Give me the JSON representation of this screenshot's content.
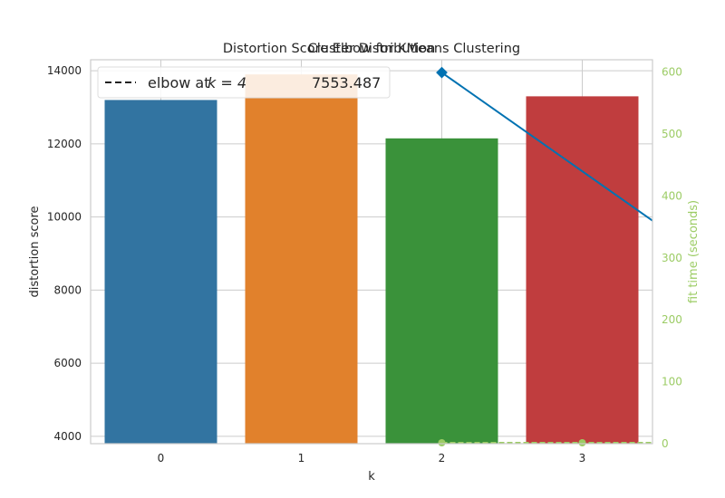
{
  "chart_data": {
    "type": "bar",
    "titles": [
      "Distortion Score Elbow for KMeans Clustering",
      "Cluster Distribution"
    ],
    "xlabel": "k",
    "ylabel": "distortion score",
    "y2label": "fit time (seconds)",
    "categories": [
      "0",
      "1",
      "2",
      "3"
    ],
    "values": [
      13200,
      13900,
      12150,
      13300
    ],
    "colors": [
      "#3274a1",
      "#e1812c",
      "#3a923a",
      "#c03d3e"
    ],
    "ylim": [
      3800,
      14300
    ],
    "yticks": [
      "4000",
      "6000",
      "8000",
      "10000",
      "12000",
      "14000"
    ],
    "y2lim": [
      0,
      620
    ],
    "y2ticks": [
      "0",
      "100",
      "200",
      "300",
      "400",
      "500",
      "600"
    ],
    "distortion_line": {
      "color": "#0072b2",
      "x": [
        2,
        3.5
      ],
      "y": [
        13950,
        9900
      ]
    },
    "fit_time": {
      "color": "#9ccc65",
      "x": [
        2,
        2.1,
        2.2,
        2.3,
        2.4,
        2.5,
        2.6,
        2.7,
        2.8,
        2.9,
        3,
        3.1,
        3.2,
        3.3,
        3.4,
        3.5
      ],
      "y": [
        0,
        0,
        0,
        0,
        0,
        0,
        0,
        0,
        0,
        0,
        0,
        0,
        0,
        0,
        0,
        0
      ]
    },
    "legend": {
      "label": "elbow at",
      "math": "k = 4",
      "score_label": "7553.487",
      "placement": "top-left"
    },
    "grid": true
  }
}
